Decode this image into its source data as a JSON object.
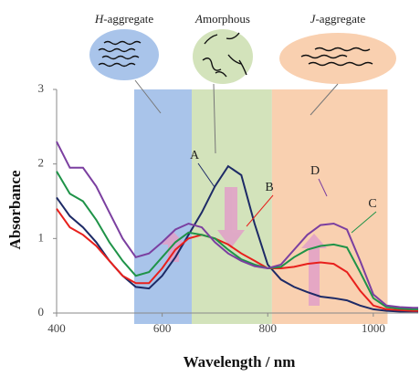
{
  "chart_data": {
    "type": "line",
    "x_label": "Wavelength / nm",
    "y_label": "Absorbance",
    "xlim": [
      400,
      1085
    ],
    "ylim": [
      0,
      3
    ],
    "xticks": [
      400,
      600,
      800,
      1000
    ],
    "yticks": [
      0,
      1,
      2,
      3
    ],
    "regions": [
      {
        "label": "H-aggregate",
        "range": [
          547,
          656
        ],
        "color": "#a9c4ea"
      },
      {
        "label": "Amorphous",
        "range": [
          656,
          808
        ],
        "color": "#d3e3bb"
      },
      {
        "label": "J-aggregate",
        "range": [
          808,
          1027
        ],
        "color": "#f9d0b0"
      }
    ],
    "x": [
      400,
      425,
      450,
      475,
      500,
      525,
      550,
      575,
      600,
      625,
      650,
      675,
      700,
      725,
      750,
      775,
      800,
      825,
      850,
      875,
      900,
      925,
      950,
      975,
      1000,
      1025,
      1050,
      1075,
      1085
    ],
    "series": [
      {
        "name": "A",
        "color": "#1d2a66",
        "values": [
          1.55,
          1.3,
          1.15,
          0.95,
          0.7,
          0.5,
          0.35,
          0.33,
          0.5,
          0.75,
          1.05,
          1.35,
          1.7,
          1.97,
          1.85,
          1.2,
          0.65,
          0.45,
          0.35,
          0.28,
          0.22,
          0.2,
          0.17,
          0.1,
          0.05,
          0.03,
          0.02,
          0.02,
          0.02
        ]
      },
      {
        "name": "B",
        "color": "#e8201c",
        "values": [
          1.4,
          1.15,
          1.05,
          0.9,
          0.7,
          0.5,
          0.4,
          0.4,
          0.6,
          0.85,
          1.0,
          1.05,
          1.0,
          0.92,
          0.8,
          0.7,
          0.6,
          0.6,
          0.62,
          0.66,
          0.68,
          0.66,
          0.55,
          0.3,
          0.1,
          0.05,
          0.04,
          0.03,
          0.03
        ]
      },
      {
        "name": "C",
        "color": "#1f9348",
        "values": [
          1.9,
          1.6,
          1.5,
          1.25,
          0.95,
          0.7,
          0.5,
          0.55,
          0.75,
          0.95,
          1.08,
          1.05,
          1.0,
          0.85,
          0.72,
          0.65,
          0.6,
          0.62,
          0.75,
          0.85,
          0.9,
          0.92,
          0.88,
          0.55,
          0.2,
          0.08,
          0.06,
          0.05,
          0.05
        ]
      },
      {
        "name": "D",
        "color": "#7b3fa0",
        "values": [
          2.3,
          1.95,
          1.95,
          1.7,
          1.35,
          1.0,
          0.75,
          0.8,
          0.95,
          1.12,
          1.2,
          1.15,
          0.95,
          0.8,
          0.7,
          0.63,
          0.6,
          0.65,
          0.85,
          1.05,
          1.18,
          1.2,
          1.12,
          0.7,
          0.25,
          0.1,
          0.08,
          0.07,
          0.07
        ]
      }
    ]
  }
}
